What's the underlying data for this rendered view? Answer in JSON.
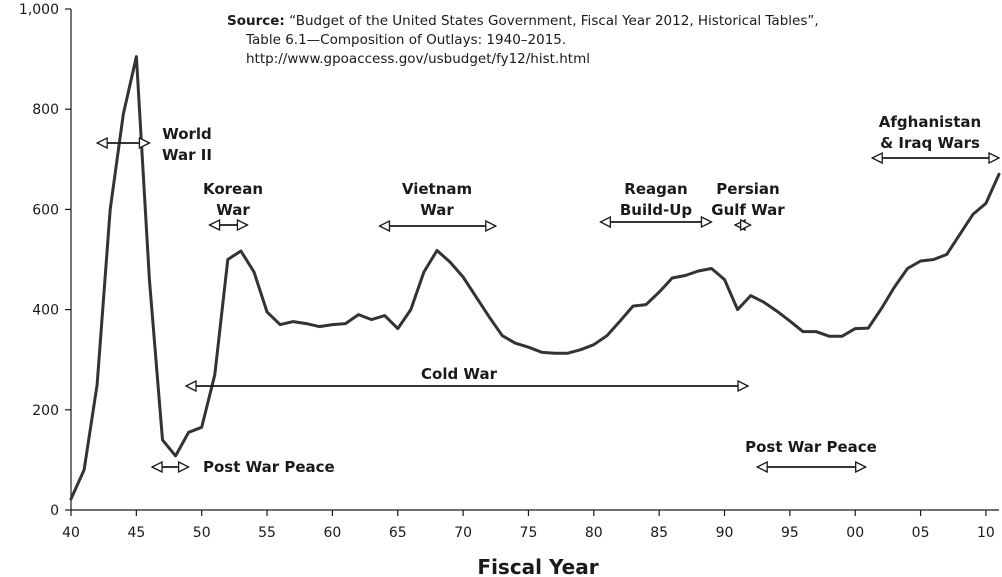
{
  "source": {
    "label": "Source:",
    "line1": "“Budget of the United States Government, Fiscal Year 2012, Historical Tables”,",
    "line2": "Table 6.1—Composition of Outlays: 1940–2015.",
    "line3": "http://www.gpoaccess.gov/usbudget/fy12/hist.html"
  },
  "chart_data": {
    "type": "line",
    "title": "",
    "xlabel": "Fiscal Year",
    "ylabel": "",
    "xlim": [
      1940,
      2011
    ],
    "ylim": [
      0,
      1000
    ],
    "grid": false,
    "x_ticks": [
      1940,
      1945,
      1950,
      1955,
      1960,
      1965,
      1970,
      1975,
      1980,
      1985,
      1990,
      1995,
      2000,
      2005,
      2010
    ],
    "x_tick_labels": [
      "40",
      "45",
      "50",
      "55",
      "60",
      "65",
      "70",
      "75",
      "80",
      "85",
      "90",
      "95",
      "00",
      "05",
      "10"
    ],
    "y_ticks": [
      0,
      200,
      400,
      600,
      800,
      1000
    ],
    "y_tick_labels": [
      "0",
      "200",
      "400",
      "600",
      "800",
      "1,000"
    ],
    "series": [
      {
        "color": "#333333",
        "x": [
          1940,
          1941,
          1942,
          1943,
          1944,
          1945,
          1946,
          1947,
          1948,
          1949,
          1950,
          1951,
          1952,
          1953,
          1954,
          1955,
          1956,
          1957,
          1958,
          1959,
          1960,
          1961,
          1962,
          1963,
          1964,
          1965,
          1966,
          1967,
          1968,
          1969,
          1970,
          1971,
          1972,
          1973,
          1974,
          1975,
          1976,
          1977,
          1978,
          1979,
          1980,
          1981,
          1982,
          1983,
          1984,
          1985,
          1986,
          1987,
          1988,
          1989,
          1990,
          1991,
          1992,
          1993,
          1994,
          1995,
          1996,
          1997,
          1998,
          1999,
          2000,
          2001,
          2002,
          2003,
          2004,
          2005,
          2006,
          2007,
          2008,
          2009,
          2010,
          2011
        ],
        "values": [
          22,
          80,
          250,
          600,
          790,
          905,
          460,
          140,
          108,
          155,
          165,
          270,
          500,
          517,
          475,
          395,
          370,
          376,
          372,
          366,
          370,
          372,
          390,
          380,
          388,
          362,
          400,
          475,
          518,
          495,
          465,
          425,
          385,
          348,
          333,
          325,
          315,
          313,
          313,
          320,
          330,
          348,
          377,
          407,
          410,
          435,
          463,
          468,
          477,
          482,
          460,
          400,
          428,
          415,
          397,
          377,
          356,
          356,
          347,
          347,
          362,
          363,
          402,
          445,
          482,
          497,
          500,
          510,
          550,
          590,
          612,
          670
        ]
      }
    ],
    "annotations": [
      {
        "text_lines": [
          "World",
          "War II"
        ],
        "span": [
          1942.0,
          1946.0
        ]
      },
      {
        "text_lines": [
          "Korean",
          "War"
        ],
        "span": [
          1950.6,
          1953.5
        ]
      },
      {
        "text_lines": [
          "Vietnam",
          "War"
        ],
        "span": [
          1963.6,
          1972.5
        ]
      },
      {
        "text_lines": [
          "Reagan",
          "Build-Up"
        ],
        "span": [
          1980.5,
          1989.0
        ]
      },
      {
        "text_lines": [
          "Persian",
          "Gulf War"
        ],
        "span": [
          1990.8,
          1992.0
        ]
      },
      {
        "text_lines": [
          "Afghanistan",
          "& Iraq Wars"
        ],
        "span": [
          2001.3,
          2011.0
        ]
      },
      {
        "text_lines": [
          "Cold War"
        ],
        "span": [
          1948.8,
          1991.8
        ]
      },
      {
        "text_lines": [
          "Post War Peace"
        ],
        "span": [
          1946.2,
          1949.0
        ]
      },
      {
        "text_lines": [
          "Post War Peace"
        ],
        "span": [
          1992.5,
          2000.8
        ]
      }
    ]
  }
}
